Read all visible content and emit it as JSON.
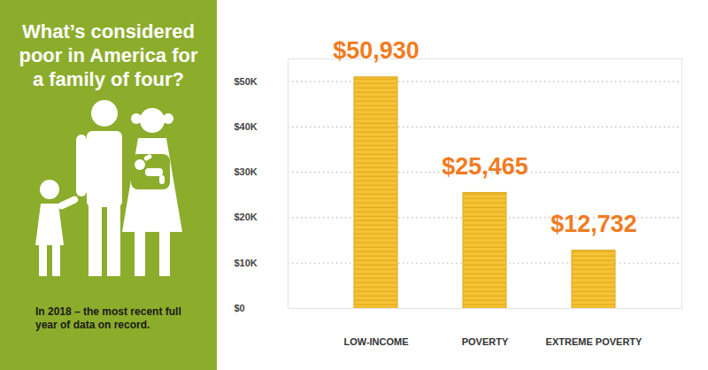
{
  "chart_data": {
    "type": "bar",
    "title": "What’s considered poor in America for a family of four?",
    "caption": "In 2018 – the most recent full year of data on record.",
    "categories": [
      "LOW-INCOME",
      "POVERTY",
      "EXTREME POVERTY"
    ],
    "values": [
      50930,
      25465,
      12732
    ],
    "value_labels": [
      "$50,930",
      "$25,465",
      "$12,732"
    ],
    "data_labels": true,
    "color": "#f5c12e",
    "ylim": [
      0,
      55000
    ],
    "yticks": [
      {
        "value": 0,
        "label": "$0"
      },
      {
        "value": 10000,
        "label": "$10K"
      },
      {
        "value": 20000,
        "label": "$20K"
      },
      {
        "value": 30000,
        "label": "$30K"
      },
      {
        "value": 40000,
        "label": "$40K"
      },
      {
        "value": 50000,
        "label": "$50K"
      }
    ],
    "grid": true
  }
}
